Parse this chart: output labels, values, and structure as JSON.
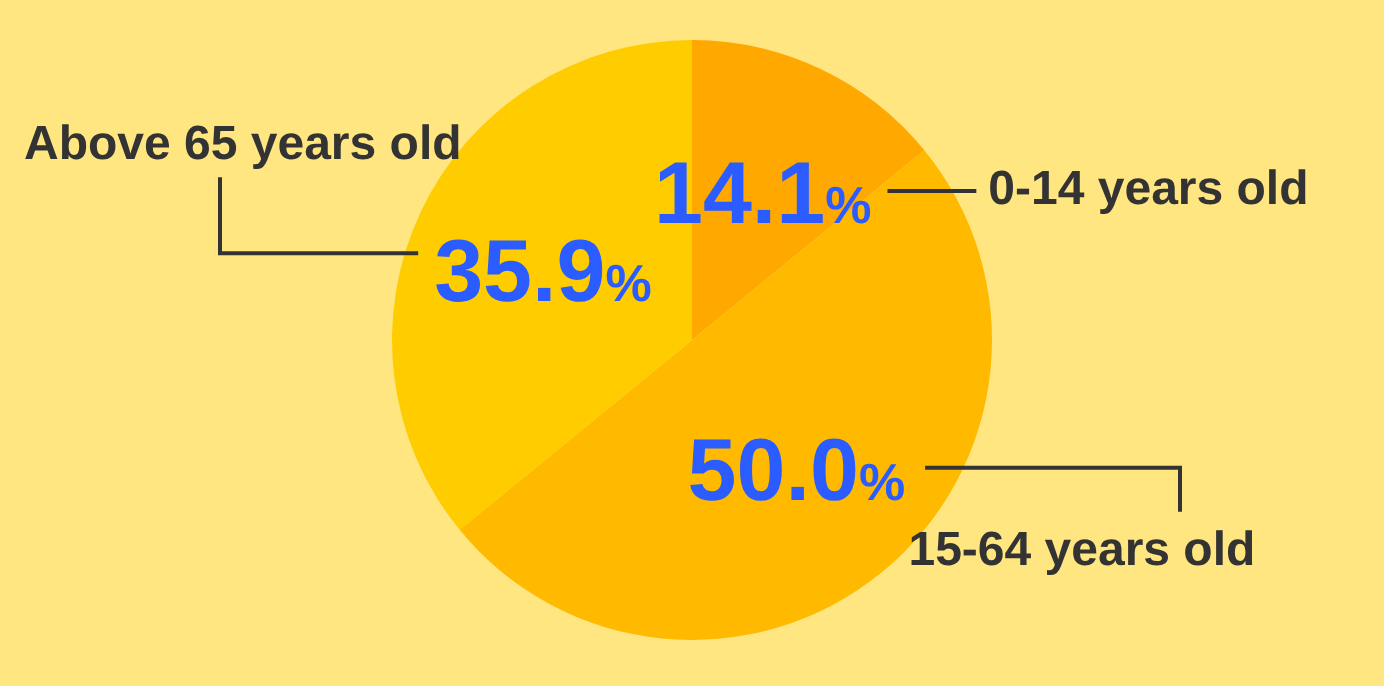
{
  "chart_data": {
    "type": "pie",
    "categories": [
      "0-14 years old",
      "15-64 years old",
      "Above 65 years old"
    ],
    "values": [
      14.1,
      50.0,
      35.9
    ],
    "colors": [
      "#ffa800",
      "#ffba00",
      "#ffcc00"
    ],
    "value_labels": [
      "14.1%",
      "50.0%",
      "35.9%"
    ]
  }
}
